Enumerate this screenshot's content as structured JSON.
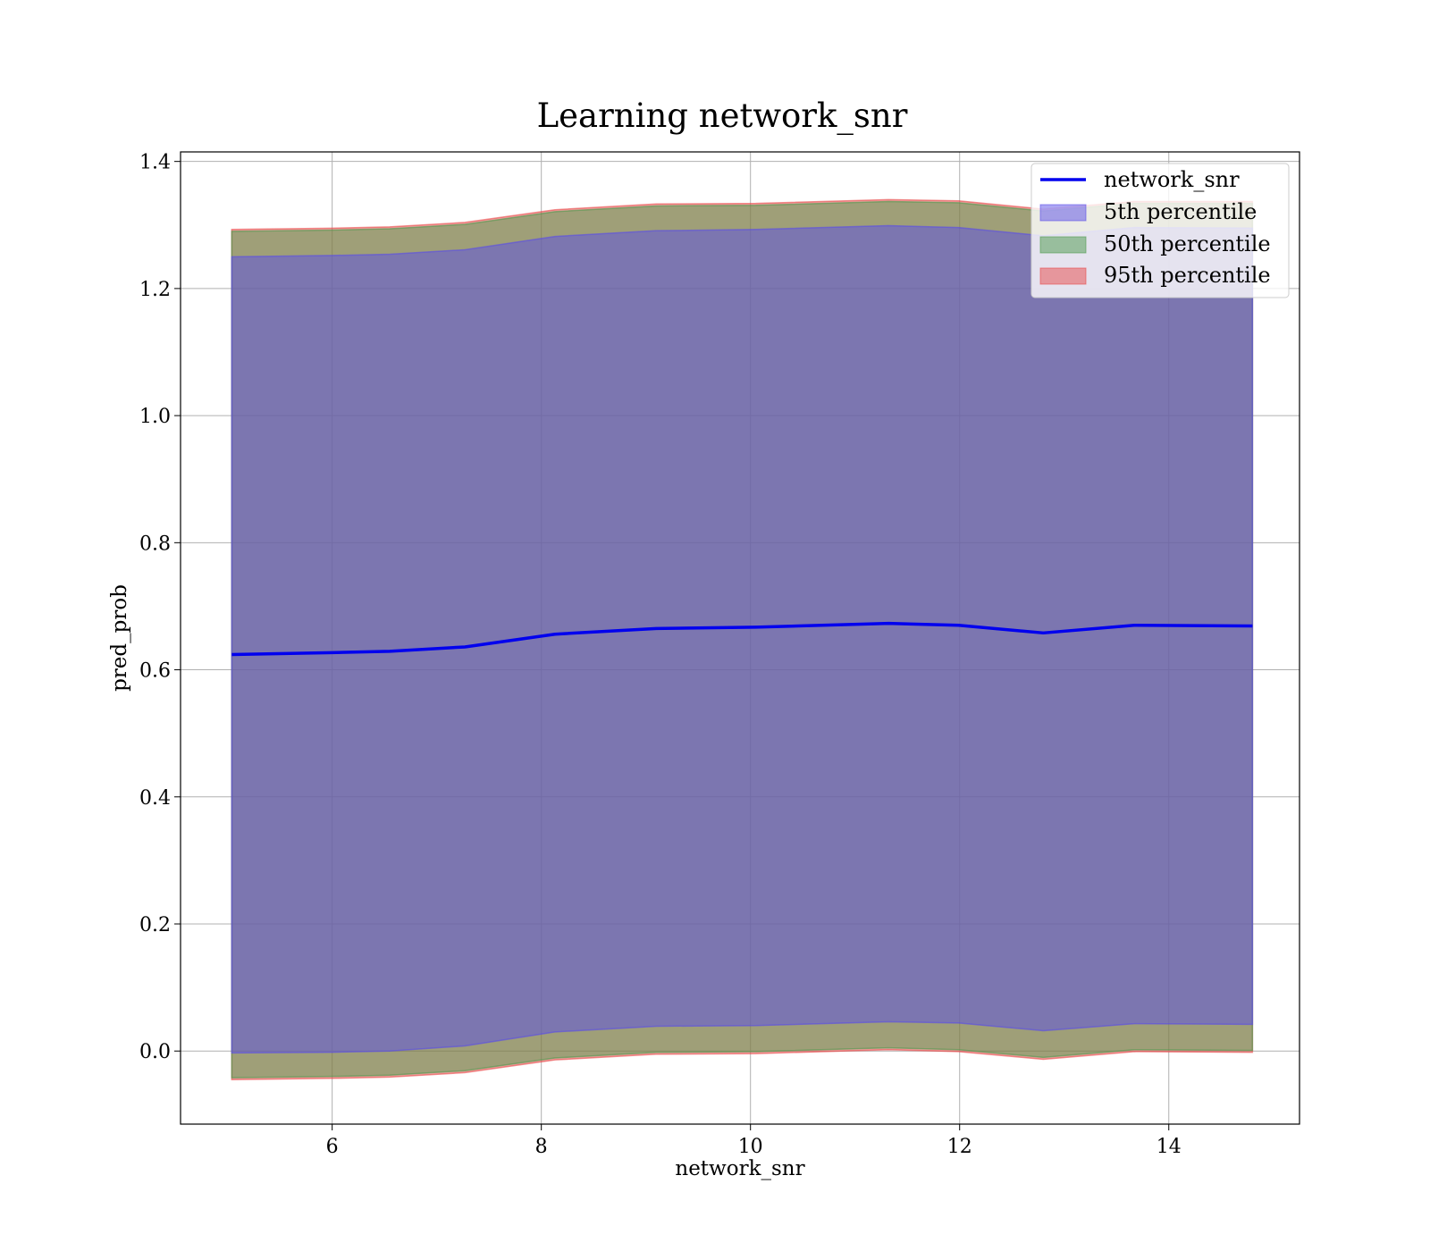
{
  "chart_data": {
    "type": "area",
    "title": "Learning network_snr",
    "xlabel": "network_snr",
    "ylabel": "pred_prob",
    "xlim": [
      4.55,
      15.25
    ],
    "ylim": [
      -0.115,
      1.415
    ],
    "xticks": [
      6,
      8,
      10,
      12,
      14
    ],
    "yticks": [
      0.0,
      0.2,
      0.4,
      0.6,
      0.8,
      1.0,
      1.2,
      1.4
    ],
    "grid": true,
    "legend_position": "top-right",
    "x": [
      5.04,
      6.0,
      6.55,
      7.27,
      8.13,
      9.1,
      10.05,
      11.32,
      11.99,
      12.8,
      13.67,
      14.8
    ],
    "line": {
      "name": "network_snr",
      "color": "#0000ee",
      "values": [
        0.624,
        0.627,
        0.629,
        0.636,
        0.656,
        0.665,
        0.667,
        0.673,
        0.67,
        0.658,
        0.67,
        0.669
      ]
    },
    "bands": [
      {
        "name": "5th percentile",
        "color": "#5a4de8",
        "lower": [
          -0.003,
          -0.002,
          0.0,
          0.008,
          0.03,
          0.039,
          0.04,
          0.046,
          0.044,
          0.032,
          0.043,
          0.042
        ],
        "upper": [
          1.25,
          1.252,
          1.254,
          1.261,
          1.282,
          1.291,
          1.293,
          1.299,
          1.296,
          1.283,
          1.296,
          1.295
        ]
      },
      {
        "name": "50th percentile",
        "color": "#4c9a4c",
        "lower": [
          -0.042,
          -0.04,
          -0.038,
          -0.031,
          -0.011,
          -0.002,
          -0.001,
          0.005,
          0.002,
          -0.01,
          0.002,
          0.001
        ],
        "upper": [
          1.29,
          1.292,
          1.294,
          1.301,
          1.321,
          1.33,
          1.331,
          1.337,
          1.335,
          1.322,
          1.334,
          1.334
        ]
      },
      {
        "name": "95th percentile",
        "color": "#e84a4a",
        "lower": [
          -0.045,
          -0.043,
          -0.041,
          -0.034,
          -0.014,
          -0.005,
          -0.004,
          0.002,
          -0.001,
          -0.013,
          -0.001,
          -0.002
        ],
        "upper": [
          1.293,
          1.295,
          1.297,
          1.304,
          1.324,
          1.333,
          1.334,
          1.34,
          1.338,
          1.325,
          1.337,
          1.337
        ]
      }
    ]
  }
}
